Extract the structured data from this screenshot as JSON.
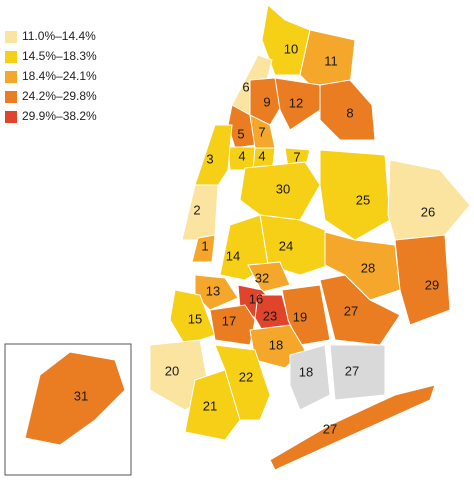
{
  "legend": [
    {
      "label": "11.0%–14.4%",
      "color": "#fbe4a0"
    },
    {
      "label": "14.5%–18.3%",
      "color": "#f6cf17"
    },
    {
      "label": "18.4%–24.1%",
      "color": "#f4a72a"
    },
    {
      "label": "24.2%–29.8%",
      "color": "#ea7d22"
    },
    {
      "label": "29.9%–38.2%",
      "color": "#e0452b"
    }
  ],
  "no_data_color": "#d9d9d9",
  "districts": [
    {
      "label": "10",
      "class": 1
    },
    {
      "label": "11",
      "class": 2
    },
    {
      "label": "6",
      "class": 0
    },
    {
      "label": "9",
      "class": 3
    },
    {
      "label": "12",
      "class": 3
    },
    {
      "label": "8",
      "class": 3
    },
    {
      "label": "5",
      "class": 3
    },
    {
      "label": "7",
      "class": 2
    },
    {
      "label": "4",
      "class": 1
    },
    {
      "label": "4",
      "class": 1
    },
    {
      "label": "7",
      "class": 1
    },
    {
      "label": "3",
      "class": 1
    },
    {
      "label": "2",
      "class": 0
    },
    {
      "label": "1",
      "class": 2
    },
    {
      "label": "30",
      "class": 1
    },
    {
      "label": "25",
      "class": 1
    },
    {
      "label": "26",
      "class": 0
    },
    {
      "label": "24",
      "class": 1
    },
    {
      "label": "14",
      "class": 1
    },
    {
      "label": "28",
      "class": 2
    },
    {
      "label": "29",
      "class": 3
    },
    {
      "label": "32",
      "class": 2
    },
    {
      "label": "13",
      "class": 2
    },
    {
      "label": "16",
      "class": 4
    },
    {
      "label": "23",
      "class": 4
    },
    {
      "label": "19",
      "class": 3
    },
    {
      "label": "27",
      "class": 3
    },
    {
      "label": "15",
      "class": 1
    },
    {
      "label": "17",
      "class": 3
    },
    {
      "label": "18",
      "class": 2
    },
    {
      "label": "20",
      "class": 0
    },
    {
      "label": "22",
      "class": 1
    },
    {
      "label": "21",
      "class": 1
    },
    {
      "label": "18",
      "class": null
    },
    {
      "label": "27",
      "class": null
    },
    {
      "label": "27",
      "class": 3
    },
    {
      "label": "31",
      "class": 3
    }
  ]
}
